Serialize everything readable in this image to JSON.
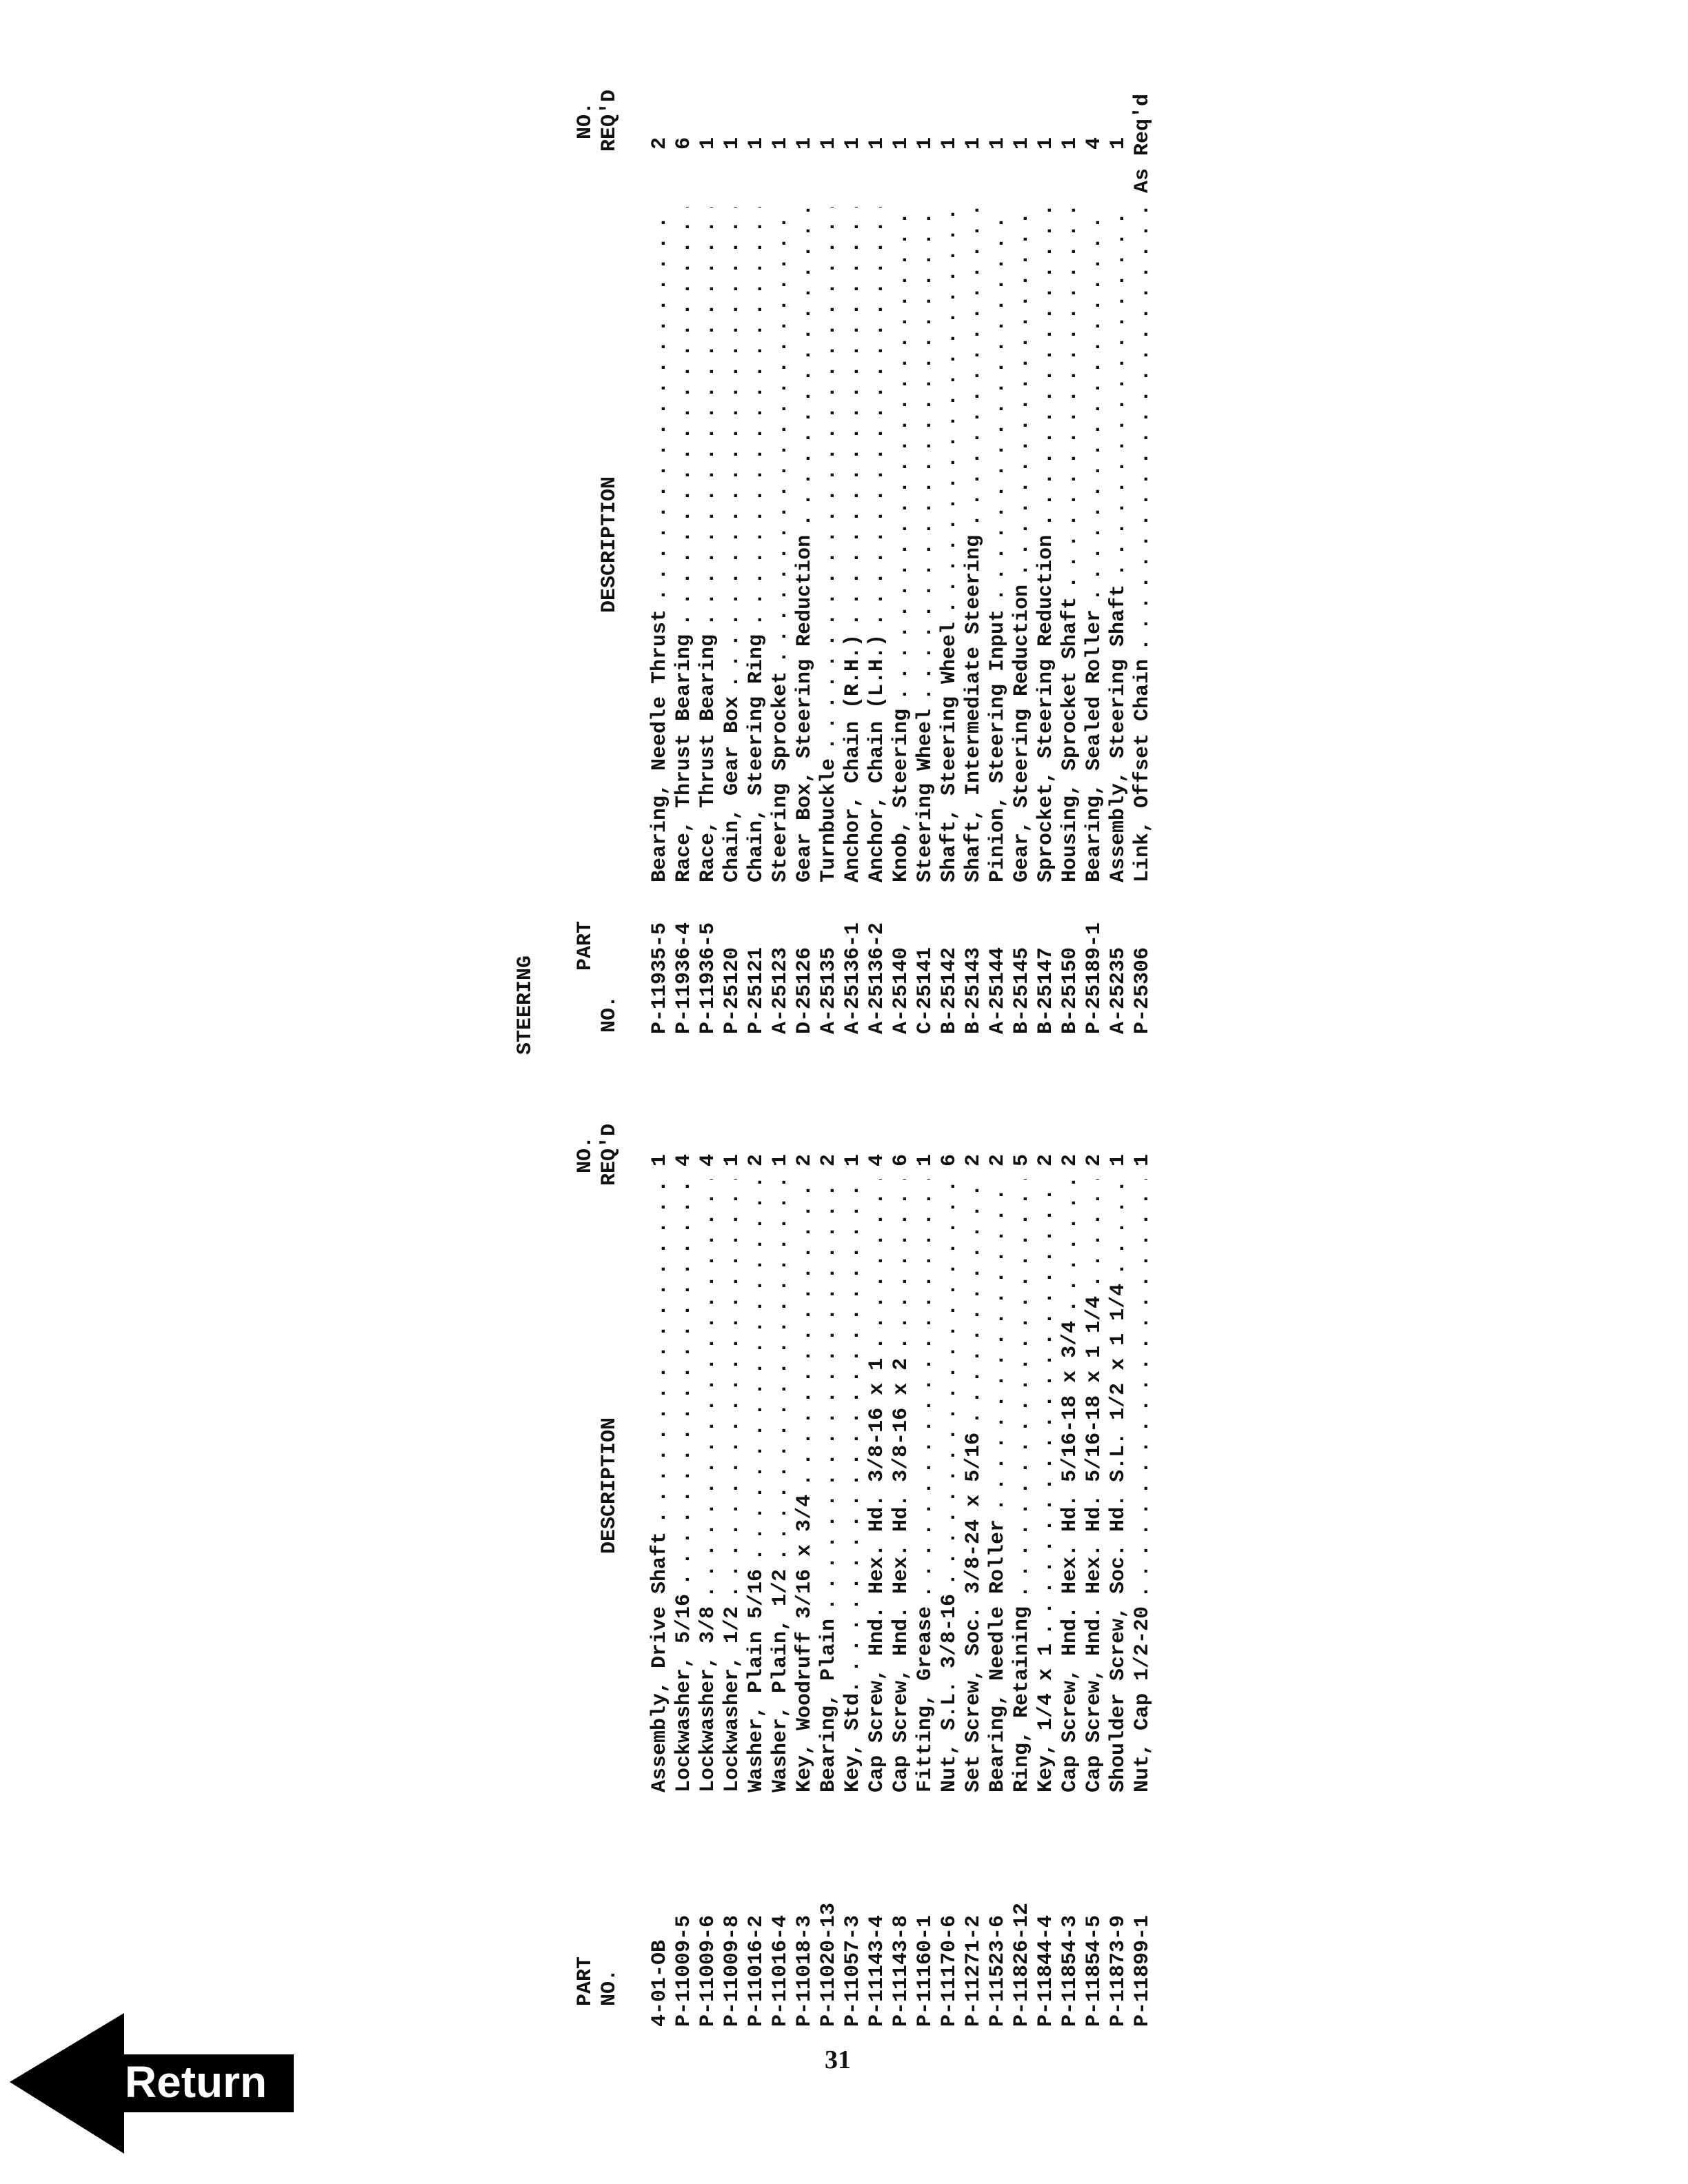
{
  "title": "STEERING",
  "page_number": "31",
  "return_button": "Return",
  "headers": {
    "part_line1": "PART",
    "part_line2": "NO.",
    "description": "DESCRIPTION",
    "req_line1": "NO.",
    "req_line2": "REQ'D"
  },
  "left_table": [
    {
      "part": "4-01-OB",
      "desc": "Assembly, Drive Shaft",
      "qty": "1"
    },
    {
      "part": "P-11009-5",
      "desc": "Lockwasher, 5/16",
      "qty": "4"
    },
    {
      "part": "P-11009-6",
      "desc": "Lockwasher, 3/8",
      "qty": "4"
    },
    {
      "part": "P-11009-8",
      "desc": "Lockwasher, 1/2",
      "qty": "1"
    },
    {
      "part": "P-11016-2",
      "desc": "Washer, Plain 5/16",
      "qty": "2"
    },
    {
      "part": "P-11016-4",
      "desc": "Washer, Plain, 1/2",
      "qty": "1"
    },
    {
      "part": "P-11018-3",
      "desc": "Key, Woodruff 3/16 x 3/4",
      "qty": "2"
    },
    {
      "part": "P-11020-13",
      "desc": "Bearing, Plain",
      "qty": "2"
    },
    {
      "part": "P-11057-3",
      "desc": "Key, Std.",
      "qty": "1"
    },
    {
      "part": "P-11143-4",
      "desc": "Cap Screw, Hnd. Hex. Hd. 3/8-16 x 1",
      "qty": "4"
    },
    {
      "part": "P-11143-8",
      "desc": "Cap Screw, Hnd. Hex. Hd. 3/8-16 x 2",
      "qty": "6"
    },
    {
      "part": "P-11160-1",
      "desc": "Fitting, Grease",
      "qty": "1"
    },
    {
      "part": "P-11170-6",
      "desc": "Nut, S.L. 3/8-16",
      "qty": "6"
    },
    {
      "part": "P-11271-2",
      "desc": "Set Screw, Soc. 3/8-24 x 5/16",
      "qty": "2"
    },
    {
      "part": "P-11523-6",
      "desc": "Bearing, Needle Roller",
      "qty": "2"
    },
    {
      "part": "P-11826-12",
      "desc": "Ring, Retaining",
      "qty": "5"
    },
    {
      "part": "P-11844-4",
      "desc": "Key, 1/4 x 1",
      "qty": "2"
    },
    {
      "part": "P-11854-3",
      "desc": "Cap Screw, Hnd. Hex. Hd. 5/16-18 x 3/4",
      "qty": "2"
    },
    {
      "part": "P-11854-5",
      "desc": "Cap Screw, Hnd. Hex. Hd. 5/16-18 x 1 1/4",
      "qty": "2"
    },
    {
      "part": "P-11873-9",
      "desc": "Shoulder Screw, Soc. Hd. S.L. 1/2 x 1 1/4",
      "qty": "1"
    },
    {
      "part": "P-11899-1",
      "desc": "Nut, Cap 1/2-20",
      "qty": "1"
    }
  ],
  "right_table": [
    {
      "part": "P-11935-5",
      "desc": "Bearing, Needle Thrust",
      "qty": "2"
    },
    {
      "part": "P-11936-4",
      "desc": "Race, Thrust Bearing",
      "qty": "6"
    },
    {
      "part": "P-11936-5",
      "desc": "Race, Thrust Bearing",
      "qty": "1"
    },
    {
      "part": "P-25120",
      "desc": "Chain, Gear Box",
      "qty": "1"
    },
    {
      "part": "P-25121",
      "desc": "Chain, Steering Ring",
      "qty": "1"
    },
    {
      "part": "A-25123",
      "desc": "Steering Sprocket",
      "qty": "1"
    },
    {
      "part": "D-25126",
      "desc": "Gear Box, Steering Reduction",
      "qty": "1"
    },
    {
      "part": "A-25135",
      "desc": "Turnbuckle",
      "qty": "1"
    },
    {
      "part": "A-25136-1",
      "desc": "Anchor, Chain (R.H.)",
      "qty": "1"
    },
    {
      "part": "A-25136-2",
      "desc": "Anchor, Chain (L.H.)",
      "qty": "1"
    },
    {
      "part": "A-25140",
      "desc": "Knob, Steering",
      "qty": "1"
    },
    {
      "part": "C-25141",
      "desc": "Steering Wheel",
      "qty": "1"
    },
    {
      "part": "B-25142",
      "desc": "Shaft, Steering Wheel",
      "qty": "1"
    },
    {
      "part": "B-25143",
      "desc": "Shaft, Intermediate Steering",
      "qty": "1"
    },
    {
      "part": "A-25144",
      "desc": "Pinion, Steering Input",
      "qty": "1"
    },
    {
      "part": "B-25145",
      "desc": "Gear, Steering Reduction",
      "qty": "1"
    },
    {
      "part": "B-25147",
      "desc": "Sprocket, Steering Reduction",
      "qty": "1"
    },
    {
      "part": "B-25150",
      "desc": "Housing, Sprocket Shaft",
      "qty": "1"
    },
    {
      "part": "P-25189-1",
      "desc": "Bearing, Sealed Roller",
      "qty": "4"
    },
    {
      "part": "A-25235",
      "desc": "Assembly, Steering Shaft",
      "qty": "1"
    },
    {
      "part": "P-25306",
      "desc": "Link, Offset Chain",
      "qty": "As Req'd"
    }
  ]
}
